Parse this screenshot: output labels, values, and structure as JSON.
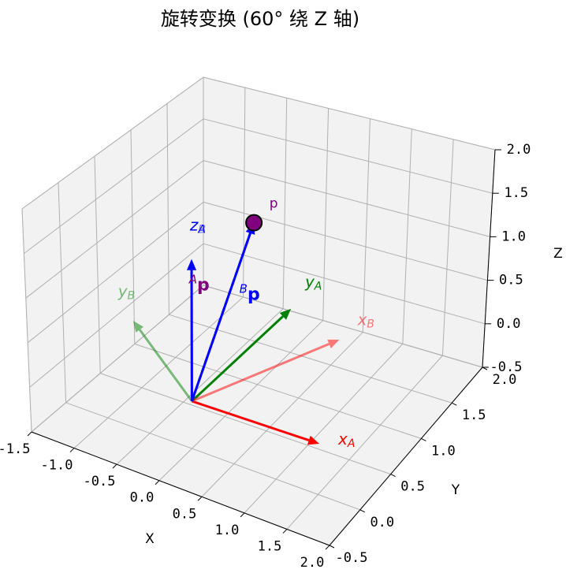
{
  "chart_data": {
    "type": "quiver3d",
    "title": "旋转变换 (60° 绕 Z 轴)",
    "xlabel": "X",
    "ylabel": "Y",
    "zlabel": "Z",
    "xlim": [
      -1.5,
      2.0
    ],
    "ylim": [
      -0.5,
      2.0
    ],
    "zlim": [
      -0.5,
      2.0
    ],
    "xticks": [
      -1.5,
      {
        "value": -1,
        "label": "-1.0"
      },
      -0.5,
      {
        "value": 0,
        "label": "0.0"
      },
      0.5,
      {
        "value": 1,
        "label": "1.0"
      },
      1.5,
      {
        "value": 2,
        "label": "2.0"
      }
    ],
    "yticks": [
      -0.5,
      {
        "value": 0,
        "label": "0.0"
      },
      0.5,
      {
        "value": 1,
        "label": "1.0"
      },
      1.5,
      {
        "value": 2,
        "label": "2.0"
      }
    ],
    "zticks": [
      -0.5,
      {
        "value": 0,
        "label": "0.0"
      },
      0.5,
      {
        "value": 1,
        "label": "1.0"
      },
      1.5,
      {
        "value": 2,
        "label": "2.0"
      }
    ],
    "grid": true,
    "vectors": [
      {
        "name": "x",
        "sub": "A",
        "color": "#ff0000",
        "opacity": 1,
        "values": [
          1.5,
          0,
          0
        ]
      },
      {
        "name": "y",
        "sub": "A",
        "color": "#008000",
        "opacity": 1,
        "values": [
          0,
          1.5,
          0
        ]
      },
      {
        "name": "z",
        "sub": "A",
        "color": "#0000ff",
        "opacity": 1,
        "values": [
          0,
          0,
          1.5
        ]
      },
      {
        "name": "x",
        "sub": "B",
        "color": "#ff0000",
        "opacity": 0.5,
        "values": [
          0.75,
          1.3,
          0
        ]
      },
      {
        "name": "y",
        "sub": "B",
        "color": "#008000",
        "opacity": 0.5,
        "values": [
          -1.3,
          0.75,
          0
        ]
      },
      {
        "name": "z",
        "sub": "B",
        "color": "#0000ff",
        "opacity": 0.5,
        "values": [
          0,
          0,
          1.5
        ]
      },
      {
        "name": "p",
        "sub": "A",
        "color": "#800080",
        "opacity": 1,
        "dashed": true,
        "values": [
          0.25,
          0.6,
          1.6
        ]
      },
      {
        "name": "p",
        "sub": "B",
        "color": "#0000ff",
        "opacity": 1,
        "values": [
          0.25,
          0.6,
          1.6
        ]
      }
    ],
    "point": {
      "label": "p",
      "color": "#800080",
      "values": [
        0.25,
        0.6,
        1.6
      ]
    }
  }
}
